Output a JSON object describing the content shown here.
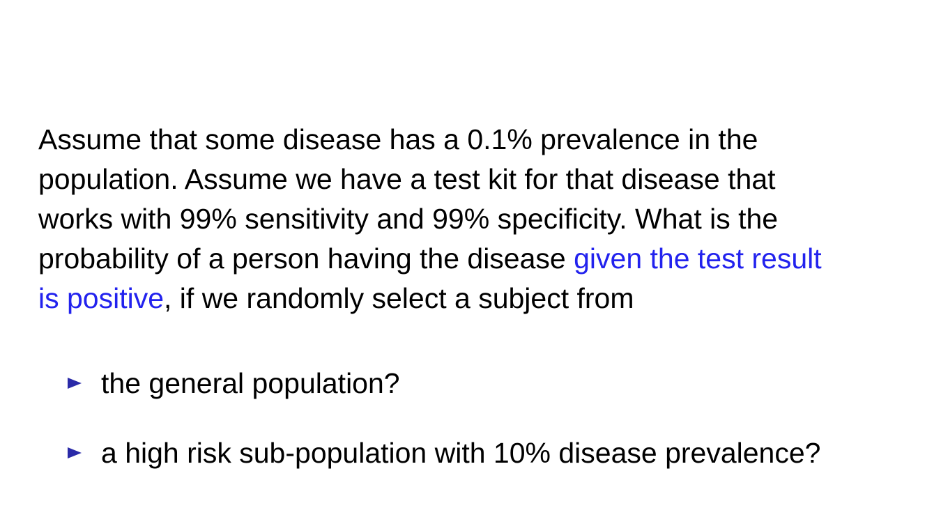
{
  "slide": {
    "paragraph": {
      "line1": "Assume that some disease has a 0.1% prevalence in the",
      "line2": "population. Assume we have a test kit for that disease that",
      "line3": "works with 99% sensitivity and 99% specificity. What is the",
      "line4_plain": "probability of a person having the disease ",
      "line4_highlight": "given the test result",
      "line5_highlight": "is positive",
      "line5_plain": ", if we randomly select a subject from"
    },
    "bullets": [
      {
        "text": "the general population?"
      },
      {
        "text": "a high risk sub-population with 10% disease prevalence?"
      }
    ],
    "colors": {
      "text": "#000000",
      "highlight": "#2222ee",
      "bullet_marker": "#2a2aa8",
      "background": "#ffffff"
    },
    "icons": {
      "bullet_marker": "triangle-right-icon"
    }
  }
}
